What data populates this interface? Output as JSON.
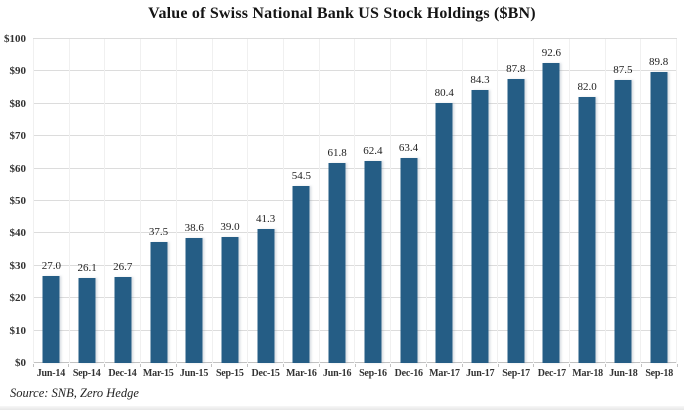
{
  "chart_data": {
    "type": "bar",
    "title": "Value of Swiss National Bank US Stock Holdings ($BN)",
    "source_note": "Source: SNB, Zero Hedge",
    "categories": [
      "Jun-14",
      "Sep-14",
      "Dec-14",
      "Mar-15",
      "Jun-15",
      "Sep-15",
      "Dec-15",
      "Mar-16",
      "Jun-16",
      "Sep-16",
      "Dec-16",
      "Mar-17",
      "Jun-17",
      "Sep-17",
      "Dec-17",
      "Mar-18",
      "Jun-18",
      "Sep-18"
    ],
    "values": [
      27.0,
      26.1,
      26.7,
      37.5,
      38.6,
      39.0,
      41.3,
      54.5,
      61.8,
      62.4,
      63.4,
      80.4,
      84.3,
      87.8,
      92.6,
      82.0,
      87.5,
      89.8
    ],
    "value_label_decimals": 1,
    "xlabel": "",
    "ylabel": "",
    "ylim": [
      0,
      100
    ],
    "y_tick_step": 10,
    "y_tick_prefix": "$",
    "grid": "horizontal",
    "legend_position": "none",
    "bar_color": "#255d85",
    "gridline_color": "#dcdcdc",
    "axis_line_color": "#c2c2c2",
    "text_color": "#333333",
    "title_color": "#141414"
  }
}
